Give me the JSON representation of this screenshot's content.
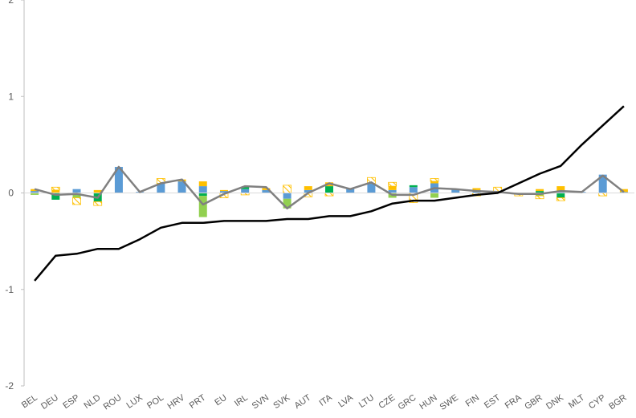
{
  "chart_data": {
    "type": "bar",
    "stacked": true,
    "categories": [
      "BEL",
      "DEU",
      "ESP",
      "NLD",
      "ROU",
      "LUX",
      "POL",
      "HRV",
      "PRT",
      "EU",
      "IRL",
      "SVN",
      "SVK",
      "AUT",
      "ITA",
      "LVA",
      "LTU",
      "CZE",
      "GRC",
      "HUN",
      "SWE",
      "FIN",
      "EST",
      "FRA",
      "GBR",
      "DNK",
      "MLT",
      "CYP",
      "BGR"
    ],
    "ylim": [
      -2,
      2
    ],
    "yticks": [
      -2,
      -1,
      0,
      1,
      2
    ],
    "grid": false,
    "legend": "none",
    "bar_series": [
      {
        "color": "#5b9bd5",
        "hatch": false,
        "values": [
          0.02,
          0.0,
          0.04,
          0.0,
          0.27,
          0.01,
          0.1,
          0.12,
          0.07,
          0.02,
          0.04,
          0.03,
          -0.06,
          0.03,
          0.0,
          0.05,
          0.1,
          0.03,
          0.06,
          0.1,
          0.04,
          0.03,
          0.0,
          0.0,
          0.0,
          0.02,
          0.01,
          0.19,
          0.01
        ]
      },
      {
        "color": "#00b050",
        "hatch": false,
        "values": [
          0.0,
          -0.07,
          0.0,
          -0.09,
          0.0,
          0.0,
          0.0,
          0.0,
          -0.03,
          0.0,
          0.02,
          0.0,
          0.0,
          0.0,
          0.07,
          0.0,
          0.0,
          0.0,
          0.02,
          0.0,
          0.0,
          0.0,
          0.0,
          -0.01,
          0.02,
          -0.05,
          0.0,
          0.0,
          0.0
        ]
      },
      {
        "color": "#92d050",
        "hatch": false,
        "values": [
          -0.02,
          0.0,
          -0.05,
          0.0,
          0.0,
          0.0,
          0.0,
          0.0,
          -0.22,
          0.0,
          0.0,
          0.0,
          -0.1,
          0.0,
          0.0,
          0.0,
          0.0,
          -0.05,
          0.0,
          -0.05,
          0.0,
          0.0,
          0.0,
          0.0,
          -0.03,
          0.0,
          0.0,
          0.0,
          0.0
        ]
      },
      {
        "color": "#ffc000",
        "hatch": false,
        "values": [
          0.02,
          0.03,
          0.0,
          0.03,
          0.0,
          0.0,
          0.0,
          0.02,
          0.05,
          0.01,
          0.0,
          0.02,
          0.0,
          0.04,
          0.04,
          0.0,
          0.0,
          0.04,
          0.0,
          0.02,
          0.0,
          0.02,
          0.01,
          0.0,
          0.02,
          0.05,
          0.0,
          0.0,
          0.03
        ]
      },
      {
        "color": "#ffc000",
        "hatch": true,
        "values": [
          0.0,
          0.03,
          -0.07,
          -0.04,
          0.0,
          0.0,
          0.05,
          0.0,
          0.0,
          -0.05,
          -0.02,
          0.0,
          0.08,
          -0.04,
          -0.03,
          0.0,
          0.06,
          0.04,
          -0.1,
          0.03,
          0.0,
          -0.03,
          0.05,
          -0.02,
          -0.03,
          -0.03,
          0.0,
          -0.03,
          0.0
        ]
      }
    ],
    "line_series": [
      {
        "color": "#808080",
        "width": 2.5,
        "values": [
          0.04,
          -0.02,
          -0.01,
          -0.05,
          0.27,
          0.01,
          0.1,
          0.14,
          -0.12,
          -0.01,
          0.07,
          0.06,
          -0.16,
          0.0,
          0.1,
          0.04,
          0.11,
          -0.02,
          -0.02,
          0.05,
          0.04,
          0.02,
          0.01,
          -0.01,
          -0.01,
          0.02,
          0.01,
          0.18,
          0.01
        ]
      },
      {
        "color": "#000000",
        "width": 2.5,
        "values": [
          -0.91,
          -0.65,
          -0.63,
          -0.58,
          -0.58,
          -0.48,
          -0.36,
          -0.31,
          -0.31,
          -0.29,
          -0.29,
          -0.29,
          -0.27,
          -0.27,
          -0.24,
          -0.24,
          -0.19,
          -0.11,
          -0.08,
          -0.08,
          -0.05,
          -0.02,
          0.0,
          0.1,
          0.2,
          0.28,
          0.5,
          0.7,
          0.9
        ]
      }
    ]
  }
}
